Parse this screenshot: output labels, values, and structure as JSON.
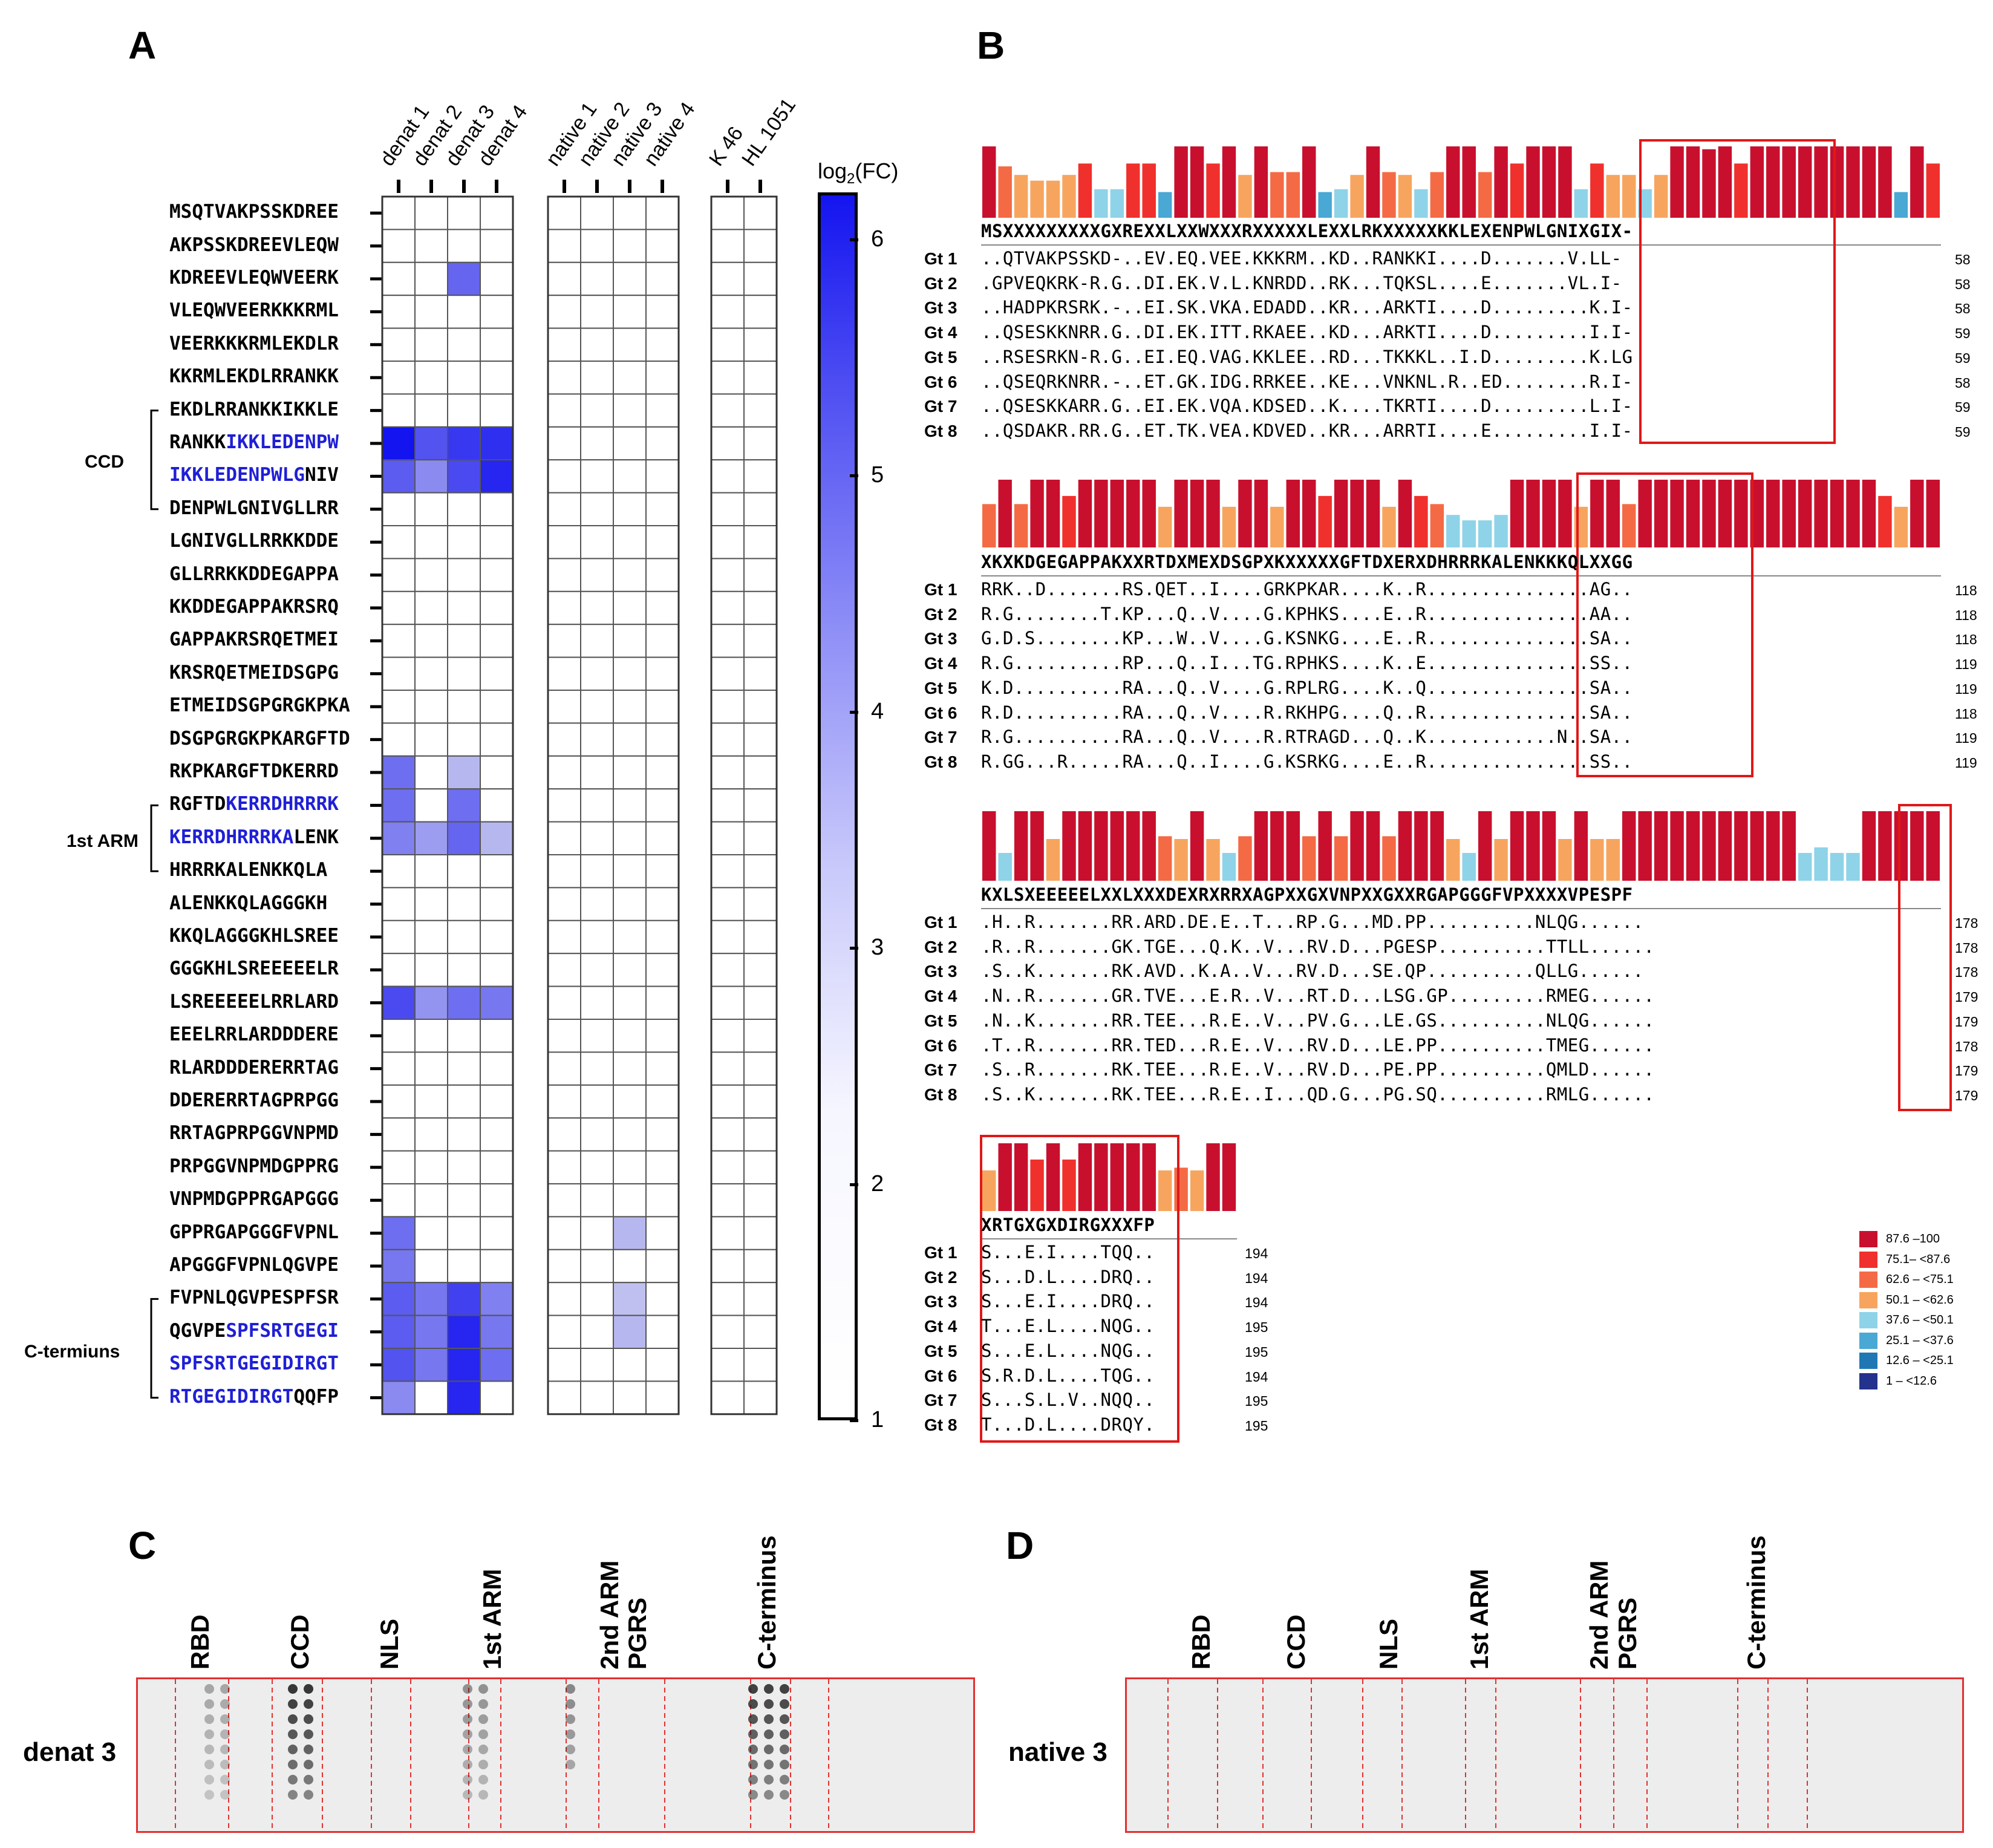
{
  "panels": {
    "A": "A",
    "B": "B",
    "C": "C",
    "D": "D"
  },
  "heatmap": {
    "col_groups": [
      {
        "labels": [
          "denat 1",
          "denat 2",
          "denat 3",
          "denat 4"
        ]
      },
      {
        "labels": [
          "native 1",
          "native 2",
          "native 3",
          "native 4"
        ]
      },
      {
        "labels": [
          "K 46",
          "HL 1051"
        ]
      }
    ],
    "colorbar": {
      "title": "log2(FC)",
      "title_main": "log",
      "title_sub": "2",
      "title_suffix": "(FC)",
      "ticks": [
        "6",
        "5",
        "4",
        "3",
        "2",
        "1"
      ],
      "min": 1,
      "max": 6.2,
      "low_color": "#ffffff",
      "high_color": "#1414f0"
    },
    "regions": [
      {
        "label": "CCD"
      },
      {
        "label": "1st ARM"
      },
      {
        "label": "C-termiuns"
      }
    ],
    "peptides": [
      {
        "pre": "MSQTVAKPSSKDREE",
        "hl": "",
        "post": "",
        "values": [
          1,
          1,
          1,
          1,
          1,
          1,
          1,
          1,
          1,
          1
        ]
      },
      {
        "pre": "AKPSSKDREEVLEQW",
        "hl": "",
        "post": "",
        "values": [
          1,
          1,
          1,
          1,
          1,
          1,
          1,
          1,
          1,
          1
        ]
      },
      {
        "pre": "KDREEVLEQWVEERK",
        "hl": "",
        "post": "",
        "values": [
          1,
          1,
          4.4,
          1,
          1,
          1,
          1,
          1,
          1,
          1
        ]
      },
      {
        "pre": "VLEQWVEERKKKRML",
        "hl": "",
        "post": "",
        "values": [
          1,
          1,
          1,
          1,
          1,
          1,
          1,
          1,
          1,
          1
        ]
      },
      {
        "pre": "VEERKKKRMLEKDLR",
        "hl": "",
        "post": "",
        "values": [
          1,
          1,
          1,
          1,
          1,
          1,
          1,
          1,
          1,
          1
        ]
      },
      {
        "pre": "KKRMLEKDLRRANKK",
        "hl": "",
        "post": "",
        "values": [
          1,
          1,
          1,
          1,
          1,
          1,
          1,
          1,
          1,
          1
        ]
      },
      {
        "pre": "EKDLRRANKKIKKLE",
        "hl": "",
        "post": "",
        "values": [
          1,
          1,
          1,
          1,
          1,
          1,
          1,
          1,
          1,
          1
        ]
      },
      {
        "pre": "RANKK",
        "hl": "IKKLEDENPW",
        "post": "",
        "values": [
          6.2,
          4.8,
          5.4,
          5.6,
          1,
          1,
          1,
          1,
          1,
          1
        ]
      },
      {
        "pre": "",
        "hl": "IKKLEDENPWLG",
        "post": "NIV",
        "values": [
          4.6,
          3.6,
          5.0,
          5.8,
          1,
          1,
          1,
          1,
          1,
          1
        ]
      },
      {
        "pre": "DENPWLGNIVGLLRR",
        "hl": "",
        "post": "",
        "values": [
          1,
          1,
          1,
          1,
          1,
          1,
          1,
          1,
          1,
          1
        ]
      },
      {
        "pre": "LGNIVGLLRRKKDDE",
        "hl": "",
        "post": "",
        "values": [
          1,
          1,
          1,
          1,
          1,
          1,
          1,
          1,
          1,
          1
        ]
      },
      {
        "pre": "GLLRRKKDDEGAPPA",
        "hl": "",
        "post": "",
        "values": [
          1,
          1,
          1,
          1,
          1,
          1,
          1,
          1,
          1,
          1
        ]
      },
      {
        "pre": "KKDDEGAPPAKRSRQ",
        "hl": "",
        "post": "",
        "values": [
          1,
          1,
          1,
          1,
          1,
          1,
          1,
          1,
          1,
          1
        ]
      },
      {
        "pre": "GAPPAKRSRQETMEI",
        "hl": "",
        "post": "",
        "values": [
          1,
          1,
          1,
          1,
          1,
          1,
          1,
          1,
          1,
          1
        ]
      },
      {
        "pre": "KRSRQETMEIDSGPG",
        "hl": "",
        "post": "",
        "values": [
          1,
          1,
          1,
          1,
          1,
          1,
          1,
          1,
          1,
          1
        ]
      },
      {
        "pre": "ETMEIDSGPGRGKPKA",
        "hl": "",
        "post": "",
        "values": [
          1,
          1,
          1,
          1,
          1,
          1,
          1,
          1,
          1,
          1
        ]
      },
      {
        "pre": "DSGPGRGKPKARGFTD",
        "hl": "",
        "post": "",
        "values": [
          1,
          1,
          1,
          1,
          1,
          1,
          1,
          1,
          1,
          1
        ]
      },
      {
        "pre": "RKPKARGFTDKERRD",
        "hl": "",
        "post": "",
        "values": [
          4.2,
          1,
          2.6,
          1,
          1,
          1,
          1,
          1,
          1,
          1
        ]
      },
      {
        "pre": "RGFTD",
        "hl": "KERRDHRRRK",
        "post": "",
        "values": [
          4.2,
          1,
          4.2,
          1,
          1,
          1,
          1,
          1,
          1,
          1
        ]
      },
      {
        "pre": "",
        "hl": "KERRDHRRRKA",
        "post": "LENK",
        "values": [
          3.8,
          3.2,
          4.4,
          2.6,
          1,
          1,
          1,
          1,
          1,
          1
        ]
      },
      {
        "pre": "HRRRKALENKKQLA",
        "hl": "",
        "post": "",
        "values": [
          1,
          1,
          1,
          1,
          1,
          1,
          1,
          1,
          1,
          1
        ]
      },
      {
        "pre": "ALENKKQLAGGGKH",
        "hl": "",
        "post": "",
        "values": [
          1,
          1,
          1,
          1,
          1,
          1,
          1,
          1,
          1,
          1
        ]
      },
      {
        "pre": "KKQLAGGGKHLSREE",
        "hl": "",
        "post": "",
        "values": [
          1,
          1,
          1,
          1,
          1,
          1,
          1,
          1,
          1,
          1
        ]
      },
      {
        "pre": "GGGKHLSREEEEELR",
        "hl": "",
        "post": "",
        "values": [
          1,
          1,
          1,
          1,
          1,
          1,
          1,
          1,
          1,
          1
        ]
      },
      {
        "pre": "LSREEEEELRRLARD",
        "hl": "",
        "post": "",
        "values": [
          5.0,
          3.4,
          4.2,
          4.0,
          1,
          1,
          1,
          1,
          1,
          1
        ]
      },
      {
        "pre": "EEELRRLARDDDERE",
        "hl": "",
        "post": "",
        "values": [
          1,
          1,
          1,
          1,
          1,
          1,
          1,
          1,
          1,
          1
        ]
      },
      {
        "pre": "RLARDDDERERRTAG",
        "hl": "",
        "post": "",
        "values": [
          1,
          1,
          1,
          1,
          1,
          1,
          1,
          1,
          1,
          1
        ]
      },
      {
        "pre": "DDERERRTAGPRPGG",
        "hl": "",
        "post": "",
        "values": [
          1,
          1,
          1,
          1,
          1,
          1,
          1,
          1,
          1,
          1
        ]
      },
      {
        "pre": "RRTAGPRPGGVNPMD",
        "hl": "",
        "post": "",
        "values": [
          1,
          1,
          1,
          1,
          1,
          1,
          1,
          1,
          1,
          1
        ]
      },
      {
        "pre": "PRPGGVNPMDGPPRG",
        "hl": "",
        "post": "",
        "values": [
          1,
          1,
          1,
          1,
          1,
          1,
          1,
          1,
          1,
          1
        ]
      },
      {
        "pre": "VNPMDGPPRGAPGGG",
        "hl": "",
        "post": "",
        "values": [
          1,
          1,
          1,
          1,
          1,
          1,
          1,
          1,
          1,
          1
        ]
      },
      {
        "pre": "GPPRGAPGGGFVPNL",
        "hl": "",
        "post": "",
        "values": [
          4.2,
          1,
          1,
          1,
          1,
          1,
          2.6,
          1,
          1,
          1
        ]
      },
      {
        "pre": "APGGGFVPNLQGVPE",
        "hl": "",
        "post": "",
        "values": [
          4.0,
          1,
          1,
          1,
          1,
          1,
          1,
          1,
          1,
          1
        ]
      },
      {
        "pre": "FVPNLQGVPESPFSR",
        "hl": "",
        "post": "",
        "values": [
          4.6,
          4.0,
          5.2,
          3.8,
          1,
          1,
          2.4,
          1,
          1,
          1
        ]
      },
      {
        "pre": "QGVPE",
        "hl": "SPFSRTGEGI",
        "post": "",
        "values": [
          4.6,
          4.0,
          5.8,
          4.0,
          1,
          1,
          2.6,
          1,
          1,
          1
        ]
      },
      {
        "pre": "",
        "hl": "SPFSRTGEGIDIRGT",
        "post": "",
        "values": [
          4.8,
          4.0,
          5.8,
          4.2,
          1,
          1,
          1,
          1,
          1,
          1
        ]
      },
      {
        "pre": "",
        "hl": "RTGEGIDIRGT",
        "post": "QQFP",
        "values": [
          3.6,
          1,
          5.8,
          1,
          1,
          1,
          1,
          1,
          1,
          1
        ]
      }
    ]
  },
  "alignment": {
    "legend": [
      {
        "label": "87.6 –100",
        "color": "#c8102e"
      },
      {
        "label": "75.1– <87.6",
        "color": "#f0302c"
      },
      {
        "label": "62.6 – <75.1",
        "color": "#f46a45"
      },
      {
        "label": "50.1 – <62.6",
        "color": "#f7a55e"
      },
      {
        "label": "37.6 – <50.1",
        "color": "#8fd3e8"
      },
      {
        "label": "25.1 – <37.6",
        "color": "#4aa8d4"
      },
      {
        "label": "12.6 – <25.1",
        "color": "#1f78b4"
      },
      {
        "label": "1 – <12.6",
        "color": "#23328c"
      }
    ],
    "blocks": [
      {
        "consensus": "MSXXXXXXXXXGXREXXLXXWXXXRXXXXXLEXXLRKXXXXXKKLEXENPWLGNIXGIX-",
        "bars": [
          100,
          72,
          60,
          52,
          52,
          60,
          76,
          40,
          40,
          76,
          76,
          36,
          100,
          100,
          76,
          100,
          60,
          100,
          64,
          64,
          100,
          36,
          40,
          60,
          100,
          64,
          60,
          40,
          64,
          100,
          100,
          64,
          100,
          76,
          100,
          100,
          100,
          40,
          76,
          60,
          60,
          40,
          60,
          100,
          100,
          96,
          100,
          76,
          100,
          100,
          100,
          100,
          100,
          100,
          100,
          100,
          100,
          36,
          100,
          76
        ],
        "gts": [
          {
            "label": "Gt 1",
            "seq": "..QTVAKPSSKD-..EV.EQ.VEE.KKKRM..KD..RANKKI....D.......V.LL-",
            "num": "58"
          },
          {
            "label": "Gt 2",
            "seq": ".GPVEQKRK-R.G..DI.EK.V.L.KNRDD..RK...TQKSL....E.......VL.I-",
            "num": "58"
          },
          {
            "label": "Gt 3",
            "seq": "..HADPKRSRK.-..EI.SK.VKA.EDADD..KR...ARKTI....D.........K.I-",
            "num": "58"
          },
          {
            "label": "Gt 4",
            "seq": "..QSESKKNRR.G..DI.EK.ITT.RKAEE..KD...ARKTI....D.........I.I-",
            "num": "59"
          },
          {
            "label": "Gt 5",
            "seq": "..RSESRKN-R.G..EI.EQ.VAG.KKLEE..RD...TKKKL..I.D.........K.LG",
            "num": "59"
          },
          {
            "label": "Gt 6",
            "seq": "..QSEQRKNRR.-..ET.GK.IDG.RRKEE..KE...VNKNL.R..ED........R.I-",
            "num": "58"
          },
          {
            "label": "Gt 7",
            "seq": "..QSESKKARR.G..EI.EK.VQA.KDSED..K....TKRTI....D.........L.I-",
            "num": "59"
          },
          {
            "label": "Gt 8",
            "seq": "..QSDAKR.RR.G..ET.TK.VEA.KDVED..KR...ARRTI....E.........I.I-",
            "num": "59"
          }
        ]
      },
      {
        "consensus": "XKXKDGEGAPPAKXXRTDXMEXDSGPXKXXXXXGFTDXERXDHRRRKALENKKKQLXXGG",
        "bars": [
          64,
          100,
          64,
          100,
          100,
          76,
          100,
          100,
          100,
          100,
          100,
          60,
          100,
          100,
          100,
          60,
          100,
          100,
          60,
          100,
          100,
          76,
          100,
          100,
          100,
          60,
          100,
          76,
          64,
          48,
          40,
          40,
          48,
          100,
          100,
          100,
          100,
          60,
          100,
          100,
          64,
          100,
          100,
          100,
          100,
          100,
          100,
          100,
          100,
          100,
          100,
          100,
          100,
          100,
          100,
          100,
          76,
          60,
          100,
          100
        ],
        "gts": [
          {
            "label": "Gt 1",
            "seq": "RRK..D.......RS.QET..I....GRKPKAR....K..R...............AG..",
            "num": "118"
          },
          {
            "label": "Gt 2",
            "seq": "R.G........T.KP...Q..V....G.KPHKS....E..R...............AA..",
            "num": "118"
          },
          {
            "label": "Gt 3",
            "seq": "G.D.S........KP...W..V....G.KSNKG....E..R...............SA..",
            "num": "118"
          },
          {
            "label": "Gt 4",
            "seq": "R.G..........RP...Q..I...TG.RPHKS....K..E...............SS..",
            "num": "119"
          },
          {
            "label": "Gt 5",
            "seq": "K.D..........RA...Q..V....G.RPLRG....K..Q...............SA..",
            "num": "119"
          },
          {
            "label": "Gt 6",
            "seq": "R.D..........RA...Q..V....R.RKHPG....Q..R...............SA..",
            "num": "118"
          },
          {
            "label": "Gt 7",
            "seq": "R.G..........RA...Q..V....R.RTRAGD...Q..K............N..SA..",
            "num": "119"
          },
          {
            "label": "Gt 8",
            "seq": "R.GG...R.....RA...Q..I....G.KSRKG....E..R...............SS..",
            "num": "119"
          }
        ]
      },
      {
        "consensus": "KXLSXEEEEELXXLXXXDEXRXRRXAGPXXGXVNPXXGXXRGAPGGGFVPXXXXVPESPF",
        "bars": [
          100,
          40,
          100,
          100,
          60,
          100,
          100,
          100,
          100,
          100,
          100,
          64,
          60,
          100,
          60,
          40,
          64,
          100,
          100,
          100,
          64,
          100,
          64,
          100,
          100,
          64,
          100,
          100,
          100,
          60,
          40,
          100,
          60,
          100,
          100,
          100,
          60,
          100,
          60,
          60,
          100,
          100,
          100,
          100,
          100,
          100,
          100,
          100,
          100,
          100,
          100,
          40,
          48,
          40,
          40,
          100,
          100,
          100,
          100,
          100
        ],
        "gts": [
          {
            "label": "Gt 1",
            "seq": ".H..R.......RR.ARD.DE.E..T...RP.G...MD.PP..........NLQG......",
            "num": "178"
          },
          {
            "label": "Gt 2",
            "seq": ".R..R.......GK.TGE...Q.K..V...RV.D...PGESP..........TTLL......",
            "num": "178"
          },
          {
            "label": "Gt 3",
            "seq": ".S..K.......RK.AVD..K.A..V...RV.D...SE.QP..........QLLG......",
            "num": "178"
          },
          {
            "label": "Gt 4",
            "seq": ".N..R.......GR.TVE...E.R..V...RT.D...LSG.GP.........RMEG......",
            "num": "179"
          },
          {
            "label": "Gt 5",
            "seq": ".N..K.......RR.TEE...R.E..V...PV.G...LE.GS..........NLQG......",
            "num": "179"
          },
          {
            "label": "Gt 6",
            "seq": ".T..R.......RR.TED...R.E..V...RV.D...LE.PP..........TMEG......",
            "num": "178"
          },
          {
            "label": "Gt 7",
            "seq": ".S..R.......RK.TEE...R.E..V...RV.D...PE.PP..........QMLD......",
            "num": "179"
          },
          {
            "label": "Gt 8",
            "seq": ".S..K.......RK.TEE...R.E..I...QD.G...PG.SQ..........RMLG......",
            "num": "179"
          }
        ]
      },
      {
        "consensus": "XRTGXGXDIRGXXXFP",
        "bars": [
          60,
          100,
          100,
          76,
          100,
          76,
          100,
          100,
          100,
          100,
          100,
          60,
          64,
          60,
          100,
          100
        ],
        "gts": [
          {
            "label": "Gt 1",
            "seq": "S...E.I....TQQ..",
            "num": "194"
          },
          {
            "label": "Gt 2",
            "seq": "S...D.L....DRQ..",
            "num": "194"
          },
          {
            "label": "Gt 3",
            "seq": "S...E.I....DRQ..",
            "num": "194"
          },
          {
            "label": "Gt 4",
            "seq": "T...E.L....NQG..",
            "num": "195"
          },
          {
            "label": "Gt 5",
            "seq": "S...E.L....NQG..",
            "num": "195"
          },
          {
            "label": "Gt 6",
            "seq": "S.R.D.L....TQG..",
            "num": "194"
          },
          {
            "label": "Gt 7",
            "seq": "S...S.L.V..NQQ..",
            "num": "195"
          },
          {
            "label": "Gt 8",
            "seq": "T...D.L....DRQY.",
            "num": "195"
          }
        ]
      }
    ]
  },
  "dotblots": {
    "region_labels": [
      "RBD",
      "CCD",
      "NLS",
      "1st ARM",
      "2nd ARM",
      "PGRS",
      "C-terminus"
    ],
    "C": {
      "sample": "denat 3"
    },
    "D": {
      "sample": "native 3"
    }
  }
}
